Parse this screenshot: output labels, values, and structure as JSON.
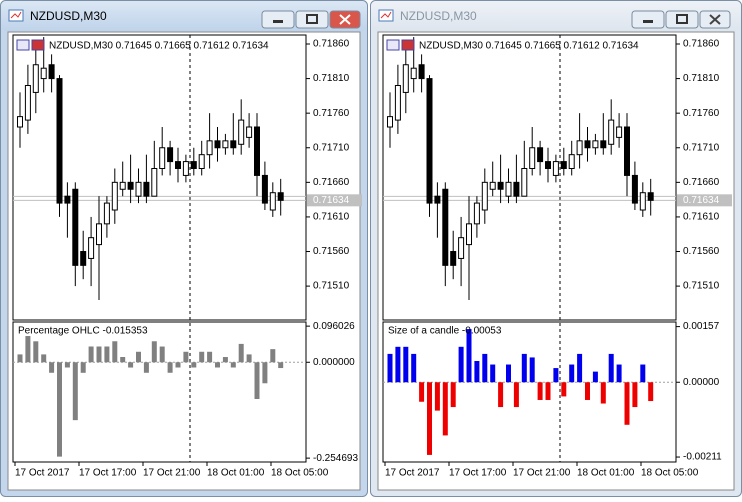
{
  "windows": [
    {
      "title": "NZDUSD,M30",
      "chart_header": "NZDUSD,M30  0.71645 0.71665 0.71612 0.71634",
      "active": true,
      "indicator": {
        "name": "Percentage OHLC -0.015353",
        "ylim": [
          -0.265,
          0.107
        ],
        "ticks": [
          0.096026,
          {
            "value": 0,
            "label": "0.000000"
          },
          -0.254693
        ],
        "color": "#808080",
        "values": [
          0.0209,
          0.0697,
          0.0557,
          0.0209,
          -0.0279,
          -0.2507,
          -0.0139,
          -0.1538,
          -0.028,
          0.0419,
          0.0419,
          0.0419,
          0.0558,
          0.014,
          -0.014,
          0.0279,
          -0.0279,
          0.0558,
          0.0418,
          -0.0279,
          -0.0139,
          0.0279,
          -0.0139,
          0.0279,
          0.0279,
          -0.0139,
          0.0139,
          -0.0139,
          0.0488,
          0.0209,
          -0.0976,
          -0.0558,
          0.0349,
          -0.015353
        ]
      }
    },
    {
      "title": "NZDUSD,M30",
      "chart_header": "NZDUSD,M30  0.71645 0.71665 0.71612 0.71634",
      "active": false,
      "indicator": {
        "name": "Size of a candle -0.00053",
        "ylim": [
          -0.00225,
          0.0017
        ],
        "ticks": [
          0.00157,
          {
            "value": 0,
            "label": "0.00000"
          },
          -0.00211
        ],
        "up_color": "#0000ee",
        "down_color": "#ee0000",
        "values": [
          0.0008,
          0.001,
          0.001,
          0.0008,
          -0.00055,
          -0.00205,
          -0.0008,
          -0.0015,
          -0.0007,
          0.001,
          0.0015,
          0.0006,
          0.0008,
          0.0005,
          -0.0007,
          0.0005,
          -0.0007,
          0.0008,
          0.0007,
          -0.0005,
          -0.0005,
          0.0004,
          -0.0004,
          0.0005,
          0.0008,
          -0.0005,
          0.0003,
          -0.0006,
          0.0008,
          0.0005,
          -0.0012,
          -0.0007,
          0.0005,
          -0.00053
        ]
      }
    }
  ],
  "price_axis": {
    "ylim": [
      0.71461,
      0.71873
    ],
    "ticks": [
      {
        "value": 0.7186,
        "label": "0.71860"
      },
      {
        "value": 0.7181,
        "label": "0.71810"
      },
      {
        "value": 0.7176,
        "label": "0.71760"
      },
      {
        "value": 0.7171,
        "label": "0.71710"
      },
      {
        "value": 0.7166,
        "label": "0.71660"
      },
      {
        "value": 0.7161,
        "label": "0.71610"
      },
      {
        "value": 0.7156,
        "label": "0.71560"
      },
      {
        "value": 0.7151,
        "label": "0.71510"
      }
    ]
  },
  "current_price": {
    "value": 0.71634,
    "label": "0.71634"
  },
  "time_labels": [
    "17 Oct 2017",
    "17 Oct 17:00",
    "17 Oct 21:00",
    "18 Oct 01:00",
    "18 Oct 05:00"
  ],
  "candles": {
    "open": [
      0.7174,
      0.7175,
      0.7179,
      0.7181,
      0.7183,
      0.7181,
      0.7164,
      0.7165,
      0.7156,
      0.7155,
      0.7157,
      0.716,
      0.7162,
      0.7165,
      0.7166,
      0.7164,
      0.7166,
      0.7164,
      0.7168,
      0.7171,
      0.7169,
      0.7167,
      0.7169,
      0.7168,
      0.717,
      0.7172,
      0.7171,
      0.7172,
      0.71715,
      0.71725,
      0.7174,
      0.7167,
      0.7162,
      0.71645
    ],
    "high": [
      0.7179,
      0.7183,
      0.7186,
      0.7187,
      0.71845,
      0.71815,
      0.7166,
      0.7166,
      0.7159,
      0.7161,
      0.7164,
      0.7164,
      0.7168,
      0.7169,
      0.717,
      0.7168,
      0.717,
      0.7172,
      0.7174,
      0.7172,
      0.7171,
      0.717,
      0.7171,
      0.7172,
      0.7176,
      0.7174,
      0.7173,
      0.7176,
      0.7178,
      0.7176,
      0.7176,
      0.7169,
      0.7166,
      0.71665
    ],
    "low": [
      0.7171,
      0.7173,
      0.7176,
      0.7179,
      0.7179,
      0.7161,
      0.7158,
      0.7151,
      0.7152,
      0.7151,
      0.7149,
      0.7158,
      0.716,
      0.7164,
      0.7163,
      0.7163,
      0.7163,
      0.7164,
      0.7167,
      0.7167,
      0.7166,
      0.7166,
      0.7167,
      0.7167,
      0.7168,
      0.7169,
      0.717,
      0.717,
      0.717,
      0.7171,
      0.7164,
      0.7162,
      0.7161,
      0.71612
    ],
    "close": [
      0.71755,
      0.718,
      0.7183,
      0.71825,
      0.7181,
      0.7163,
      0.7163,
      0.7154,
      0.7154,
      0.7158,
      0.716,
      0.7163,
      0.7166,
      0.7166,
      0.7165,
      0.7166,
      0.7164,
      0.7168,
      0.7171,
      0.7169,
      0.7168,
      0.7169,
      0.7168,
      0.717,
      0.7172,
      0.7171,
      0.7172,
      0.7171,
      0.7175,
      0.7174,
      0.7167,
      0.7163,
      0.71645,
      0.71634
    ]
  }
}
